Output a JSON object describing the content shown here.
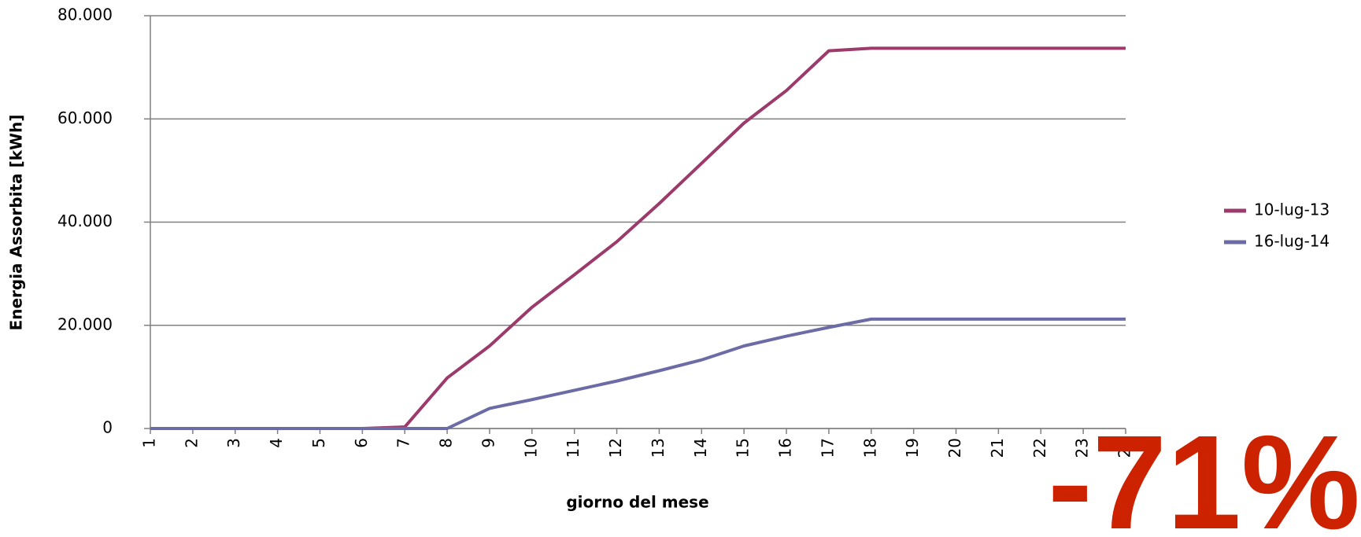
{
  "chart_data": {
    "type": "line",
    "x_label": "giorno del mese",
    "y_label": "Energia Assorbita [kWh]",
    "annotation": "-71%",
    "categories": [
      "1",
      "2",
      "3",
      "4",
      "5",
      "6",
      "7",
      "8",
      "9",
      "10",
      "11",
      "12",
      "13",
      "14",
      "15",
      "16",
      "17",
      "18",
      "19",
      "20",
      "21",
      "22",
      "23",
      "24"
    ],
    "series": [
      {
        "name": "10-lug-13",
        "color": "#9b3a6b",
        "values": [
          0,
          0,
          0,
          0,
          0,
          0,
          300,
          9800,
          16000,
          23500,
          29800,
          36200,
          43600,
          51400,
          59200,
          65500,
          73200,
          73700,
          73700,
          73700,
          73700,
          73700,
          73700,
          73700
        ]
      },
      {
        "name": "16-lug-14",
        "color": "#6b6ba6",
        "values": [
          0,
          0,
          0,
          0,
          0,
          0,
          0,
          0,
          3900,
          5600,
          7400,
          9200,
          11200,
          13300,
          16000,
          17900,
          19600,
          21200,
          21200,
          21200,
          21200,
          21200,
          21200,
          21200
        ]
      }
    ],
    "ylim": [
      0,
      80000
    ],
    "yticks": [
      {
        "value": 0,
        "label": "0"
      },
      {
        "value": 20000,
        "label": "20.000"
      },
      {
        "value": 40000,
        "label": "40.000"
      },
      {
        "value": 60000,
        "label": "60.000"
      },
      {
        "value": 80000,
        "label": "80.000"
      }
    ],
    "grid": true,
    "legend": "right"
  }
}
